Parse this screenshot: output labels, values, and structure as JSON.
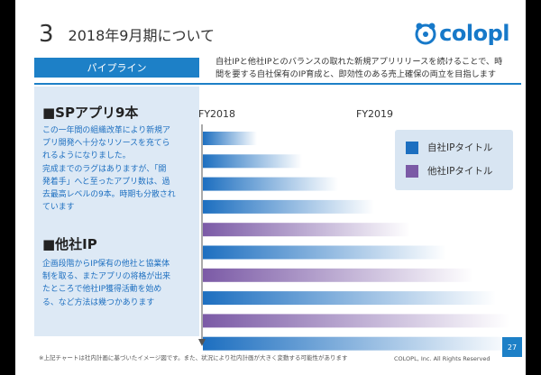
{
  "header": {
    "section_number": "3",
    "section_title": "2018年9月期について",
    "logo_text": "colopl",
    "logo_color": "#1779c9"
  },
  "pipeline": {
    "tab_label": "パイプライン",
    "description_line1": "自社IPと他社IPとのバランスの取れた新規アプリリリースを続けることで、時",
    "description_line2": "間を要する自社保有のIP育成と、即効性のある売上確保の両立を目指します"
  },
  "left_panel": {
    "sp_heading": "■SPアプリ9本",
    "sp_lines": [
      "この一年間の組織改革により新規ア",
      "プリ開発へ十分なリソースを充てら",
      "れるようになりました。",
      "完成までのラグはありますが、「開",
      "発着手」へと至ったアプリ数は、過",
      "去最高レベルの9本。時期も分散され",
      "ています"
    ],
    "ip_heading": "■他社IP",
    "ip_lines": [
      "企画段階からIP保有の他社と協業体",
      "制を取る、またアプリの将格が出来",
      "たところで他社IP獲得活動を始め",
      "る、など方法は幾つかあります"
    ]
  },
  "chart_data": {
    "type": "bar",
    "x_labels": [
      "FY2018",
      "FY2019"
    ],
    "legend_position": "top-right",
    "series": [
      {
        "name": "自社IPタイトル",
        "color": "#1d6fc0"
      },
      {
        "name": "他社IPタイトル",
        "color": "#7b5aa6"
      }
    ],
    "bars": [
      {
        "series": 0
      },
      {
        "series": 0
      },
      {
        "series": 0
      },
      {
        "series": 0
      },
      {
        "series": 1
      },
      {
        "series": 0
      },
      {
        "series": 1
      },
      {
        "series": 0
      },
      {
        "series": 1
      },
      {
        "series": 0
      }
    ]
  },
  "footer": {
    "footnote": "※上記チャートは社内計画に基づいたイメージ図です。また、状況により社内計画が大きく変動する可能性があります",
    "copyright": "COLOPL, Inc. All Rights Reserved",
    "page_number": "27"
  }
}
